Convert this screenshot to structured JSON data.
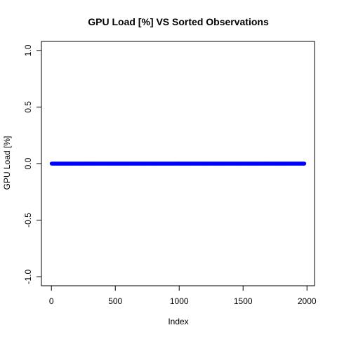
{
  "chart_data": {
    "type": "scatter",
    "title": "GPU Load [%]  VS  Sorted Observations",
    "xlabel": "Index",
    "ylabel": "GPU Load [%]",
    "xlim": [
      1,
      1980
    ],
    "ylim": [
      -1.0,
      1.0
    ],
    "x_ticks": [
      0,
      500,
      1000,
      1500,
      2000
    ],
    "x_tick_labels": [
      "0",
      "500",
      "1000",
      "1500",
      "2000"
    ],
    "y_ticks": [
      -1.0,
      -0.5,
      0.0,
      0.5,
      1.0
    ],
    "y_tick_labels": [
      "-1.0",
      "-0.5",
      "0.0",
      "0.5",
      "1.0"
    ],
    "grid": false,
    "point_color": "#0000ff",
    "n_points": 1980,
    "y_value": 0.0
  }
}
